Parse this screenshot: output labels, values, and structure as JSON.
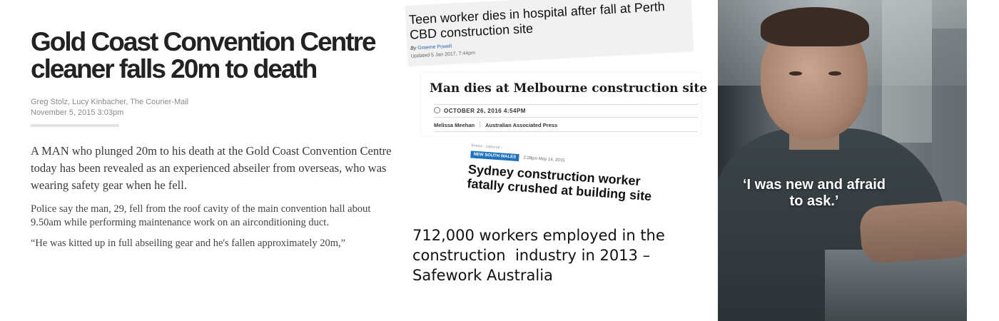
{
  "article": {
    "headline": "Gold Coast Convention Centre cleaner falls 20m to death",
    "authors": "Greg Stolz, Lucy Kinbacher, The Courier-Mail",
    "date": "November 5, 2015 3:03pm",
    "lead": "A MAN who plunged 20m to his death at the Gold Coast Convention Centre today has been revealed as an experienced abseiler from overseas, who was wearing safety gear when he fell.",
    "paragraph": "Police say the man, 29, fell from the roof cavity of the main convention hall about 9.50am while performing maintenance work on an airconditioning duct.",
    "quote": "“He was kitted up in full abseiling gear and he's fallen approximately 20m,”"
  },
  "clipping_perth": {
    "headline": "Teen worker dies in hospital after fall at Perth CBD construction site",
    "by_label": "By",
    "author": "Graeme Powell",
    "updated": "Updated 5 Jan 2017, 7:44pm"
  },
  "clipping_melbourne": {
    "headline": "Man dies at Melbourne construction site",
    "date": "OCTOBER 26, 2016 4:54PM",
    "author": "Melissa Meehan",
    "source": "Australian Associated Press"
  },
  "clipping_sydney": {
    "breadcrumb": "9news › national ›",
    "tag": "NEW SOUTH WALES",
    "time": "2:28pm May 14, 2015",
    "headline": "Sydney construction worker fatally crushed at building site"
  },
  "statistic": "712,000 workers employed in the construction  industry in 2013 – Safework Australia",
  "poster": {
    "quote_line1": "‘I was new and afraid",
    "quote_line2": "to ask.’"
  },
  "colors": {
    "link_blue": "#2b63b8",
    "tag_blue": "#1e73be"
  }
}
